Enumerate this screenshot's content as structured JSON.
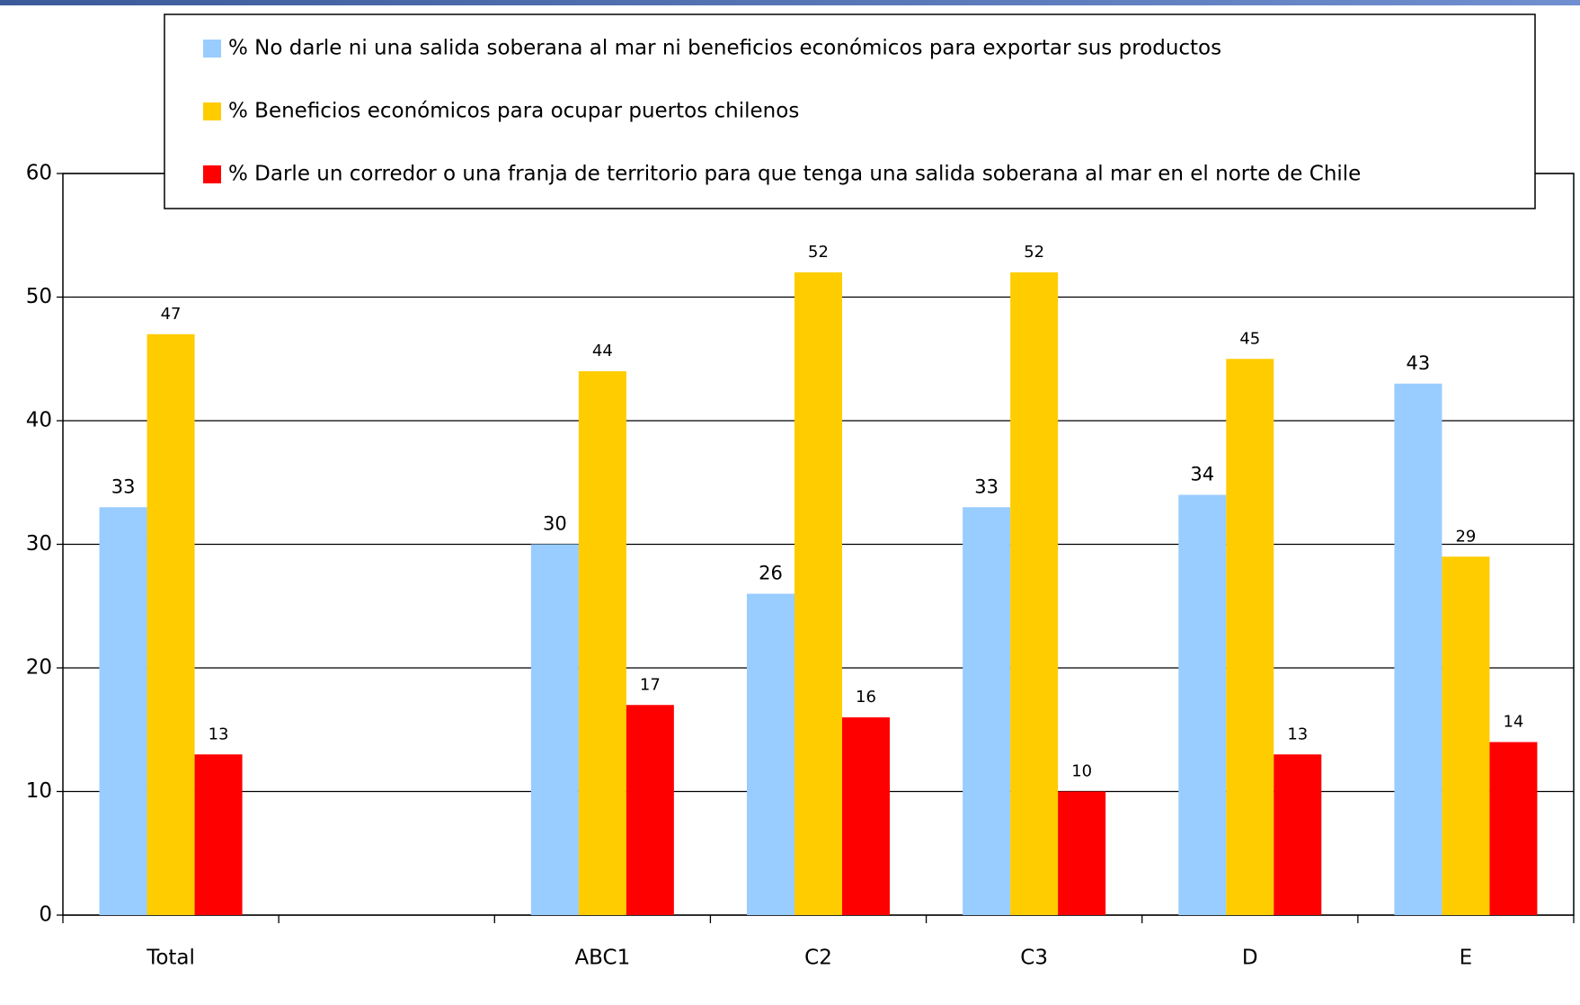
{
  "chart_data": {
    "type": "bar",
    "categories": [
      "Total",
      null,
      "ABC1",
      "C2",
      "C3",
      "D",
      "E"
    ],
    "series": [
      {
        "name": "% No darle ni una salida soberana al mar ni beneficios económicos para exportar sus productos",
        "color": "#99ccff",
        "values": [
          33,
          null,
          30,
          26,
          33,
          34,
          43
        ]
      },
      {
        "name": "% Beneficios económicos para ocupar puertos chilenos",
        "color": "#ffcc00",
        "values": [
          47,
          null,
          44,
          52,
          52,
          45,
          29
        ]
      },
      {
        "name": "% Darle un corredor o una franja de territorio para que tenga una salida soberana al mar en el norte de Chile",
        "color": "#ff0000",
        "values": [
          13,
          null,
          17,
          16,
          10,
          13,
          14
        ]
      }
    ],
    "ylim": [
      0,
      60
    ],
    "yticks": [
      0,
      10,
      20,
      30,
      40,
      50,
      60
    ],
    "grid": true,
    "legend": "top"
  }
}
